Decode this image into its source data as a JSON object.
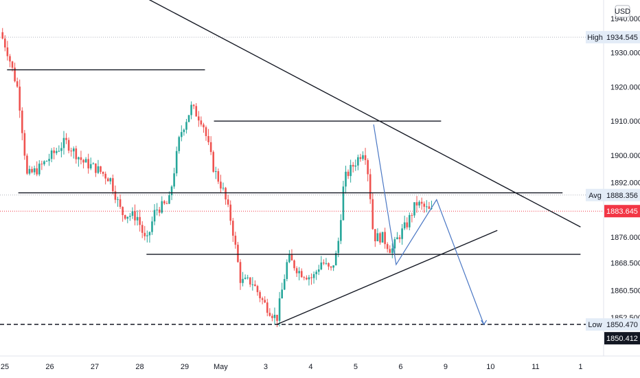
{
  "chart_data": {
    "type": "candlestick",
    "title": "",
    "currency": "USD",
    "colors": {
      "up": "#26a69a",
      "down": "#ef5350",
      "trendline": "#131722",
      "projection": "#4a77c4",
      "last_price": "#f23645",
      "label_bg": "#e3ecf7",
      "dark_tag": "#131722"
    },
    "ylim": [
      1848.6,
      1945.6
    ],
    "y_ticks": [
      "1940.000",
      "1930.000",
      "1920.000",
      "1910.000",
      "1900.000",
      "1892.000",
      "1876.000",
      "1868.500",
      "1860.500",
      "1852.500"
    ],
    "x_labels": [
      {
        "label": "25",
        "day": 0
      },
      {
        "label": "26",
        "day": 1
      },
      {
        "label": "27",
        "day": 2
      },
      {
        "label": "28",
        "day": 3
      },
      {
        "label": "29",
        "day": 4
      },
      {
        "label": "May",
        "day": 4.8
      },
      {
        "label": "3",
        "day": 5.8
      },
      {
        "label": "4",
        "day": 6.8
      },
      {
        "label": "5",
        "day": 7.8
      },
      {
        "label": "6",
        "day": 8.8
      },
      {
        "label": "9",
        "day": 9.8
      },
      {
        "label": "10",
        "day": 10.8
      },
      {
        "label": "11",
        "day": 11.8
      },
      {
        "label": "1",
        "day": 12.8
      }
    ],
    "levels": {
      "high": {
        "label": "High",
        "value": "1934.545"
      },
      "avg": {
        "label": "Avg",
        "value": "1888.356"
      },
      "last": {
        "value": "1883.645"
      },
      "low": {
        "label": "Low",
        "value": "1850.470"
      },
      "close": {
        "value": "1850.412"
      }
    },
    "series_anchors": [
      [
        -0.05,
        1936
      ],
      [
        0.1,
        1931
      ],
      [
        0.35,
        1919
      ],
      [
        0.55,
        1894
      ],
      [
        0.8,
        1896
      ],
      [
        1.1,
        1900
      ],
      [
        1.4,
        1904
      ],
      [
        1.8,
        1898
      ],
      [
        2.1,
        1896
      ],
      [
        2.4,
        1893
      ],
      [
        2.65,
        1883
      ],
      [
        3.0,
        1882
      ],
      [
        3.2,
        1874
      ],
      [
        3.4,
        1884
      ],
      [
        3.7,
        1886
      ],
      [
        3.95,
        1906
      ],
      [
        4.2,
        1914
      ],
      [
        4.45,
        1910
      ],
      [
        4.7,
        1896
      ],
      [
        4.9,
        1890
      ],
      [
        5.1,
        1880
      ],
      [
        5.3,
        1863
      ],
      [
        5.55,
        1863
      ],
      [
        5.8,
        1857
      ],
      [
        6.1,
        1852
      ],
      [
        6.35,
        1870
      ],
      [
        6.6,
        1866
      ],
      [
        6.9,
        1864
      ],
      [
        7.1,
        1869
      ],
      [
        7.3,
        1866
      ],
      [
        7.45,
        1872
      ],
      [
        7.6,
        1893
      ],
      [
        7.85,
        1898
      ],
      [
        8.05,
        1902
      ],
      [
        8.15,
        1893
      ],
      [
        8.25,
        1876
      ],
      [
        8.45,
        1876
      ],
      [
        8.65,
        1872
      ],
      [
        8.8,
        1876
      ],
      [
        9.0,
        1880
      ],
      [
        9.2,
        1886
      ],
      [
        9.35,
        1885
      ],
      [
        9.5,
        1883.6
      ]
    ],
    "trendlines": [
      {
        "name": "descending-resistance",
        "points": [
          [
            3.2,
            1945.6
          ],
          [
            12.8,
            1879
          ]
        ]
      },
      {
        "name": "ascending-support",
        "points": [
          [
            6.05,
            1850.5
          ],
          [
            10.95,
            1878
          ]
        ]
      },
      {
        "name": "level-1925",
        "points": [
          [
            0.05,
            1925
          ],
          [
            4.45,
            1925
          ]
        ]
      },
      {
        "name": "level-1910",
        "points": [
          [
            4.65,
            1910
          ],
          [
            9.7,
            1910
          ]
        ]
      },
      {
        "name": "level-1889",
        "points": [
          [
            0.3,
            1889
          ],
          [
            12.4,
            1889
          ]
        ]
      },
      {
        "name": "level-1871",
        "points": [
          [
            3.15,
            1871
          ],
          [
            12.8,
            1871
          ]
        ]
      }
    ],
    "projection_path": [
      [
        8.2,
        1909
      ],
      [
        8.7,
        1868
      ],
      [
        9.6,
        1887
      ],
      [
        10.65,
        1850.5
      ]
    ],
    "low_dash_value": 1850.5
  }
}
